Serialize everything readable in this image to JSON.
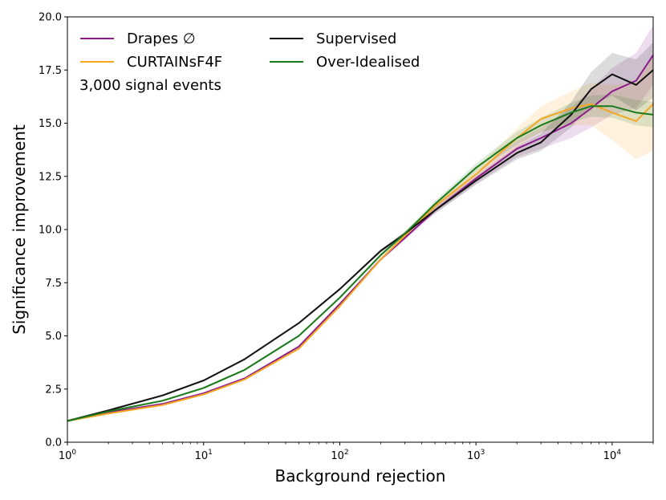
{
  "chart_data": {
    "type": "line",
    "title": "",
    "xlabel": "Background rejection",
    "ylabel": "Significance improvement",
    "xscale": "log",
    "xlim": [
      1,
      20000
    ],
    "ylim": [
      0,
      20
    ],
    "x_ticks": [
      1,
      10,
      100,
      1000,
      10000
    ],
    "x_tick_labels": [
      {
        "base": "10",
        "exp": "0"
      },
      {
        "base": "10",
        "exp": "1"
      },
      {
        "base": "10",
        "exp": "2"
      },
      {
        "base": "10",
        "exp": "3"
      },
      {
        "base": "10",
        "exp": "4"
      }
    ],
    "y_ticks": [
      0,
      2.5,
      5,
      7.5,
      10,
      12.5,
      15,
      17.5,
      20
    ],
    "y_tick_labels": [
      "0.0",
      "2.5",
      "5.0",
      "7.5",
      "10.0",
      "12.5",
      "15.0",
      "17.5",
      "20.0"
    ],
    "annotation": "3,000 signal events",
    "legend_position": "top-left",
    "series": [
      {
        "name": "Drapes ∅",
        "color": "#8b1a8b",
        "band_color": "#8b1a8b",
        "x": [
          1,
          2,
          5,
          10,
          20,
          50,
          100,
          200,
          300,
          500,
          1000,
          2000,
          3000,
          5000,
          7000,
          10000,
          15000,
          20000
        ],
        "y": [
          1.0,
          1.4,
          1.8,
          2.3,
          3.0,
          4.5,
          6.5,
          8.6,
          9.6,
          10.9,
          12.4,
          13.8,
          14.3,
          15.0,
          15.7,
          16.5,
          17.0,
          18.2
        ],
        "band": [
          0.05,
          0.05,
          0.05,
          0.05,
          0.05,
          0.05,
          0.06,
          0.08,
          0.1,
          0.15,
          0.25,
          0.4,
          0.5,
          0.7,
          0.9,
          1.1,
          1.3,
          1.4
        ]
      },
      {
        "name": "CURTAINsF4F",
        "color": "#f5a623",
        "band_color": "#f5a623",
        "x": [
          1,
          2,
          5,
          10,
          20,
          50,
          100,
          200,
          300,
          500,
          1000,
          2000,
          3000,
          5000,
          7000,
          10000,
          15000,
          20000
        ],
        "y": [
          1.0,
          1.35,
          1.75,
          2.25,
          2.95,
          4.4,
          6.4,
          8.6,
          9.7,
          11.1,
          12.6,
          14.3,
          15.2,
          15.7,
          15.9,
          15.5,
          15.1,
          15.9
        ],
        "band": [
          0.05,
          0.05,
          0.05,
          0.05,
          0.05,
          0.05,
          0.06,
          0.08,
          0.1,
          0.15,
          0.25,
          0.45,
          0.6,
          0.8,
          1.0,
          1.3,
          1.8,
          2.2
        ]
      },
      {
        "name": "Supervised",
        "color": "#111111",
        "band_color": "#111111",
        "x": [
          1,
          2,
          5,
          10,
          20,
          50,
          100,
          200,
          300,
          500,
          1000,
          2000,
          3000,
          5000,
          7000,
          10000,
          15000,
          20000
        ],
        "y": [
          1.0,
          1.5,
          2.2,
          2.9,
          3.9,
          5.6,
          7.2,
          9.0,
          9.8,
          10.9,
          12.3,
          13.6,
          14.1,
          15.4,
          16.6,
          17.3,
          16.8,
          17.5
        ],
        "band": [
          0.05,
          0.05,
          0.05,
          0.05,
          0.05,
          0.05,
          0.06,
          0.08,
          0.1,
          0.15,
          0.2,
          0.3,
          0.4,
          0.6,
          0.8,
          1.0,
          1.2,
          1.3
        ]
      },
      {
        "name": "Over-Idealised",
        "color": "#1a7a1a",
        "band_color": "#1a7a1a",
        "x": [
          1,
          2,
          5,
          10,
          20,
          50,
          100,
          200,
          300,
          500,
          1000,
          2000,
          3000,
          5000,
          7000,
          10000,
          15000,
          20000
        ],
        "y": [
          1.0,
          1.45,
          1.95,
          2.55,
          3.4,
          5.0,
          6.8,
          8.8,
          9.8,
          11.2,
          12.9,
          14.3,
          14.9,
          15.5,
          15.8,
          15.8,
          15.5,
          15.4
        ],
        "band": [
          0.05,
          0.05,
          0.05,
          0.05,
          0.05,
          0.05,
          0.06,
          0.08,
          0.1,
          0.15,
          0.2,
          0.3,
          0.35,
          0.45,
          0.5,
          0.55,
          0.6,
          0.6
        ]
      }
    ]
  }
}
